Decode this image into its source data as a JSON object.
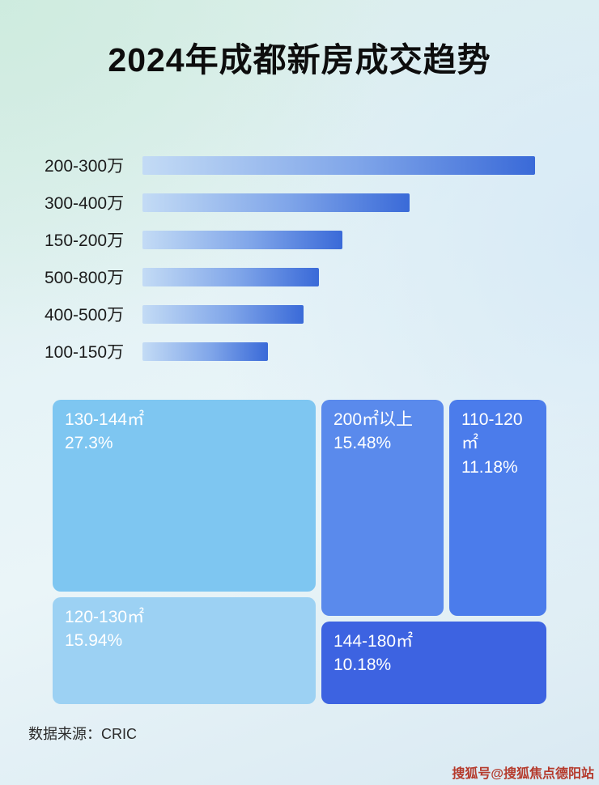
{
  "title": "2024年成都新房成交趋势",
  "source": "数据来源：CRIC",
  "watermark": "搜狐号@搜狐焦点德阳站",
  "colors": {
    "bar_gradient_start": "#c3dbf5",
    "bar_gradient_end": "#3a6ad8",
    "block_130_144": "#7ec6f1",
    "block_120_130": "#9cd1f3",
    "block_200_plus": "#5a8aec",
    "block_110_120": "#4b7ceb",
    "block_144_180": "#3d63e1",
    "watermark_red": "#b53a2c"
  },
  "chart_data": [
    {
      "type": "bar",
      "title": "2024年成都新房成交趋势",
      "orientation": "horizontal",
      "categories": [
        "200-300万",
        "300-400万",
        "150-200万",
        "500-800万",
        "400-500万",
        "100-150万"
      ],
      "values": [
        100,
        68,
        51,
        45,
        41,
        32
      ],
      "values_are": "relative bar lengths in % of longest bar; no numeric axis or data labels shown",
      "xlabel": "",
      "ylabel": "",
      "grid": false,
      "legend": false
    },
    {
      "type": "treemap",
      "items": [
        {
          "label": "130-144㎡",
          "pct": "27.3%",
          "value": 27.3
        },
        {
          "label": "120-130㎡",
          "pct": "15.94%",
          "value": 15.94
        },
        {
          "label": "200㎡以上",
          "pct": "15.48%",
          "value": 15.48
        },
        {
          "label": "110-120㎡",
          "pct": "11.18%",
          "value": 11.18
        },
        {
          "label": "144-180㎡",
          "pct": "10.18%",
          "value": 10.18
        }
      ]
    }
  ]
}
